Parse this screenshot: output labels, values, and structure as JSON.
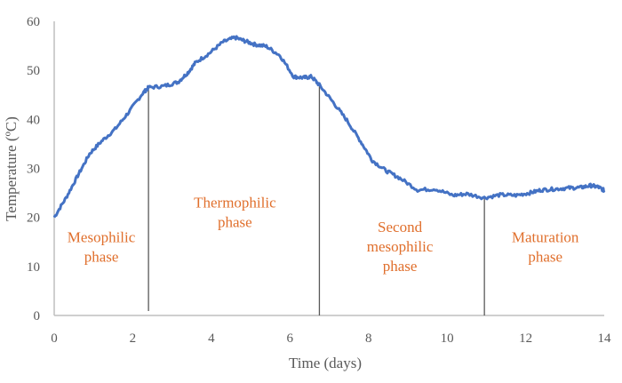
{
  "chart_data": {
    "type": "line",
    "title": "",
    "xlabel": "Time (days)",
    "ylabel": "Temperature (ºC)",
    "xlim": [
      0,
      14
    ],
    "ylim": [
      0,
      60
    ],
    "xticks": [
      0,
      2,
      4,
      6,
      8,
      10,
      12,
      14
    ],
    "yticks": [
      0,
      10,
      20,
      30,
      40,
      50,
      60
    ],
    "grid": false,
    "legend": "none",
    "series": [
      {
        "name": "Temperature",
        "color": "#4472c4",
        "x": [
          0,
          0.3,
          0.6,
          0.9,
          1.2,
          1.55,
          1.9,
          2.25,
          2.4,
          2.8,
          3.15,
          3.4,
          3.6,
          3.95,
          4.3,
          4.6,
          4.85,
          5.1,
          5.4,
          5.75,
          6.1,
          6.35,
          6.55,
          6.75,
          7.1,
          7.45,
          7.8,
          8.1,
          8.45,
          8.8,
          9.25,
          9.7,
          10.15,
          10.5,
          10.95,
          11.35,
          11.75,
          12.1,
          12.4,
          12.75,
          13.1,
          13.4,
          13.65,
          13.85,
          14
        ],
        "y": [
          20,
          24,
          28.5,
          33,
          35.5,
          38,
          41.5,
          45.3,
          46.5,
          46.8,
          47.6,
          49.5,
          51.6,
          53.5,
          55.8,
          56.7,
          56,
          55.3,
          54.9,
          53,
          48.7,
          48.5,
          48.7,
          47,
          43.5,
          39.8,
          35.5,
          31.6,
          29.5,
          28,
          25.6,
          25.8,
          24.5,
          24.8,
          24,
          24.6,
          24.5,
          25,
          25.6,
          25.8,
          26,
          26.1,
          26.5,
          26.2,
          25.5
        ]
      }
    ],
    "phase_dividers": [
      {
        "x": 2.4,
        "y_top": 46.5
      },
      {
        "x": 6.75,
        "y_top": 47
      },
      {
        "x": 10.95,
        "y_top": 24
      }
    ],
    "annotations": [
      {
        "lines": [
          "Mesophilic",
          "phase"
        ],
        "x": 1.2,
        "y": 15
      },
      {
        "lines": [
          "Thermophilic",
          "phase"
        ],
        "x": 4.6,
        "y": 22
      },
      {
        "lines": [
          "Second",
          "mesophilic",
          "phase"
        ],
        "x": 8.8,
        "y": 17
      },
      {
        "lines": [
          "Maturation",
          "phase"
        ],
        "x": 12.5,
        "y": 15
      }
    ],
    "colors": {
      "line": "#4472c4",
      "annotation": "#e06f2c",
      "axis": "#bfbfbf",
      "divider": "#595959",
      "text": "#595959"
    }
  }
}
